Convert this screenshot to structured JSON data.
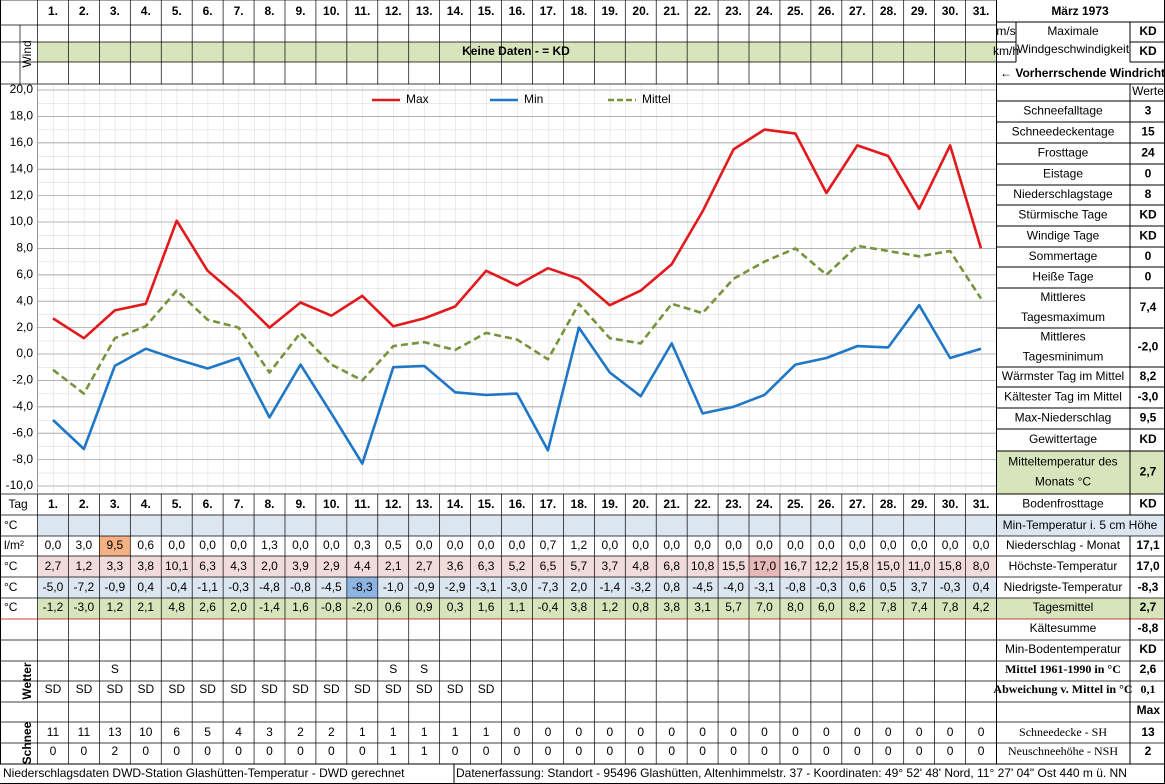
{
  "header": {
    "title": "März 1973",
    "wind_label": "Wind",
    "no_data": "Keine Daten -  = KD",
    "wind_units": [
      "m/s",
      "km/h"
    ],
    "wind_max_label": [
      "Maximale",
      "Windgeschwindigkeit"
    ],
    "wind_max_values": [
      "KD",
      "KD"
    ],
    "wind_direction": "← Vorherrschende Windrichtung"
  },
  "chart_data": {
    "type": "line",
    "categories": [
      "1.",
      "2.",
      "3.",
      "4.",
      "5.",
      "6.",
      "7.",
      "8.",
      "9.",
      "10.",
      "11.",
      "12.",
      "13.",
      "14.",
      "15.",
      "16.",
      "17.",
      "18.",
      "19.",
      "20.",
      "21.",
      "22.",
      "23.",
      "24.",
      "25.",
      "26.",
      "27.",
      "28.",
      "29.",
      "30.",
      "31."
    ],
    "series": [
      {
        "name": "Max",
        "color": "#e3191c",
        "values": [
          2.7,
          1.2,
          3.3,
          3.8,
          10.1,
          6.3,
          4.3,
          2.0,
          3.9,
          2.9,
          4.4,
          2.1,
          2.7,
          3.6,
          6.3,
          5.2,
          6.5,
          5.7,
          3.7,
          4.8,
          6.8,
          10.8,
          15.5,
          17.0,
          16.7,
          12.2,
          15.8,
          15.0,
          11.0,
          15.8,
          8.0
        ],
        "value_labels": [
          "2,7",
          "1,2",
          "3,3",
          "3,8",
          "10,1",
          "6,3",
          "4,3",
          "2,0",
          "3,9",
          "2,9",
          "4,4",
          "2,1",
          "2,7",
          "3,6",
          "6,3",
          "5,2",
          "6,5",
          "5,7",
          "3,7",
          "4,8",
          "6,8",
          "10,8",
          "15,5",
          "17,0",
          "16,7",
          "12,2",
          "15,8",
          "15,0",
          "11,0",
          "15,8",
          "8,0"
        ]
      },
      {
        "name": "Min",
        "color": "#1f77c8",
        "values": [
          -5.0,
          -7.2,
          -0.9,
          0.4,
          -0.4,
          -1.1,
          -0.3,
          -4.8,
          -0.8,
          -4.5,
          -8.3,
          -1.0,
          -0.9,
          -2.9,
          -3.1,
          -3.0,
          -7.3,
          2.0,
          -1.4,
          -3.2,
          0.8,
          -4.5,
          -4.0,
          -3.1,
          -0.8,
          -0.3,
          0.6,
          0.5,
          3.7,
          -0.3,
          0.4
        ],
        "value_labels": [
          "-5,0",
          "-7,2",
          "-0,9",
          "0,4",
          "-0,4",
          "-1,1",
          "-0,3",
          "-4,8",
          "-0,8",
          "-4,5",
          "-8,3",
          "-1,0",
          "-0,9",
          "-2,9",
          "-3,1",
          "-3,0",
          "-7,3",
          "2,0",
          "-1,4",
          "-3,2",
          "0,8",
          "-4,5",
          "-4,0",
          "-3,1",
          "-0,8",
          "-0,3",
          "0,6",
          "0,5",
          "3,7",
          "-0,3",
          "0,4"
        ]
      },
      {
        "name": "Mittel",
        "color": "#77933c",
        "dashed": true,
        "values": [
          -1.2,
          -3.0,
          1.2,
          2.1,
          4.8,
          2.6,
          2.0,
          -1.4,
          1.6,
          -0.8,
          -2.0,
          0.6,
          0.9,
          0.3,
          1.6,
          1.1,
          -0.4,
          3.8,
          1.2,
          0.8,
          3.8,
          3.1,
          5.7,
          7.0,
          8.0,
          6.0,
          8.2,
          7.8,
          7.4,
          7.8,
          4.2
        ],
        "value_labels": [
          "-1,2",
          "-3,0",
          "1,2",
          "2,1",
          "4,8",
          "2,6",
          "2,0",
          "-1,4",
          "1,6",
          "-0,8",
          "-2,0",
          "0,6",
          "0,9",
          "0,3",
          "1,6",
          "1,1",
          "-0,4",
          "3,8",
          "1,2",
          "0,8",
          "3,8",
          "3,1",
          "5,7",
          "7,0",
          "8,0",
          "6,0",
          "8,2",
          "7,8",
          "7,4",
          "7,8",
          "4,2"
        ]
      }
    ],
    "ylim": [
      -10,
      20
    ],
    "yticks": [
      {
        "value": -10,
        "label": "-10,0"
      },
      {
        "value": -8,
        "label": "-8,0"
      },
      {
        "value": -6,
        "label": "-6,0"
      },
      {
        "value": -4,
        "label": "-4,0"
      },
      {
        "value": -2,
        "label": "-2,0"
      },
      {
        "value": 0,
        "label": "0,0"
      },
      {
        "value": 2,
        "label": "2,0"
      },
      {
        "value": 4,
        "label": "4,0"
      },
      {
        "value": 6,
        "label": "6,0"
      },
      {
        "value": 8,
        "label": "8,0"
      },
      {
        "value": 10,
        "label": "10,0"
      },
      {
        "value": 12,
        "label": "12,0"
      },
      {
        "value": 14,
        "label": "14,0"
      },
      {
        "value": 16,
        "label": "16,0"
      },
      {
        "value": 18,
        "label": "18,0"
      },
      {
        "value": 20,
        "label": "20,0"
      }
    ],
    "grid": true,
    "legend": "top"
  },
  "stats": {
    "header": "Werte",
    "rows": [
      {
        "label": [
          "Schneefalltage"
        ],
        "value": "3"
      },
      {
        "label": [
          "Schneedeckentage"
        ],
        "value": "15"
      },
      {
        "label": [
          "Frosttage"
        ],
        "value": "24"
      },
      {
        "label": [
          "Eistage"
        ],
        "value": "0"
      },
      {
        "label": [
          "Niederschlagstage"
        ],
        "value": "8"
      },
      {
        "label": [
          "Stürmische Tage"
        ],
        "value": "KD"
      },
      {
        "label": [
          "Windige Tage"
        ],
        "value": "KD"
      },
      {
        "label": [
          "Sommertage"
        ],
        "value": "0"
      },
      {
        "label": [
          "Heiße Tage"
        ],
        "value": "0"
      },
      {
        "label": [
          "Mittleres",
          "Tagesmaximum"
        ],
        "value": "7,4"
      },
      {
        "label": [
          "Mittleres",
          "Tagesminimum"
        ],
        "value": "-2,0"
      },
      {
        "label": [
          "Wärmster Tag im Mittel"
        ],
        "value": "8,2"
      },
      {
        "label": [
          "Kältester Tag im Mittel"
        ],
        "value": "-3,0"
      },
      {
        "label": [
          "Max-Niederschlag"
        ],
        "value": "9,5"
      },
      {
        "label": [
          "Gewittertage"
        ],
        "value": "KD"
      },
      {
        "label": [
          "Mitteltemperatur des",
          "Monats °C"
        ],
        "value": "2,7"
      },
      {
        "label": [
          "Bodenfrosttage"
        ],
        "value": "KD"
      }
    ]
  },
  "table": {
    "tag_label": "Tag",
    "units": [
      "°C",
      "l/m²",
      "°C",
      "°C",
      "°C"
    ],
    "precipitation": [
      "0,0",
      "3,0",
      "9,5",
      "0,6",
      "0,0",
      "0,0",
      "0,0",
      "1,3",
      "0,0",
      "0,0",
      "0,3",
      "0,5",
      "0,0",
      "0,0",
      "0,0",
      "0,0",
      "0,7",
      "1,2",
      "0,0",
      "0,0",
      "0,0",
      "0,0",
      "0,0",
      "0,0",
      "0,0",
      "0,0",
      "0,0",
      "0,0",
      "0,0",
      "0,0",
      "0,0"
    ],
    "weather_label": "Wetter",
    "weather_s": [
      null,
      null,
      "S",
      null,
      null,
      null,
      null,
      null,
      null,
      null,
      null,
      "S",
      "S",
      null,
      null,
      null,
      null,
      null,
      null,
      null,
      null,
      null,
      null,
      null,
      null,
      null,
      null,
      null,
      null,
      null,
      null
    ],
    "weather_sd": [
      "SD",
      "SD",
      "SD",
      "SD",
      "SD",
      "SD",
      "SD",
      "SD",
      "SD",
      "SD",
      "SD",
      "SD",
      "SD",
      "SD",
      "SD",
      null,
      null,
      null,
      null,
      null,
      null,
      null,
      null,
      null,
      null,
      null,
      null,
      null,
      null,
      null,
      null
    ],
    "snow_label": "Schnee",
    "snow_depth": [
      11,
      11,
      13,
      10,
      6,
      5,
      4,
      3,
      2,
      2,
      1,
      1,
      1,
      1,
      1,
      0,
      0,
      0,
      0,
      0,
      0,
      0,
      0,
      0,
      0,
      0,
      0,
      0,
      0,
      0,
      0
    ],
    "new_snow": [
      0,
      0,
      2,
      0,
      0,
      0,
      0,
      0,
      0,
      0,
      0,
      1,
      1,
      0,
      0,
      0,
      0,
      0,
      0,
      0,
      0,
      0,
      0,
      0,
      0,
      0,
      0,
      0,
      0,
      0,
      0
    ]
  },
  "summary": {
    "min_temp_header": "Min-Temperatur i. 5 cm Höhe",
    "rows": [
      {
        "label": "Niederschlag - Monat",
        "value": "17,1"
      },
      {
        "label": "Höchste-Temperatur",
        "value": "17,0"
      },
      {
        "label": "Niedrigste-Temperatur",
        "value": "-8,3"
      },
      {
        "label": "Tagesmittel",
        "value": "2,7"
      },
      {
        "label": "Kältesumme",
        "value": "-8,8"
      },
      {
        "label": "Min-Bodentemperatur",
        "value": "KD"
      },
      {
        "label": "Mittel 1961-1990 in °C",
        "value": "2,6"
      },
      {
        "label": "Abweichung v. Mittel in °C",
        "value": "0,1"
      }
    ],
    "max_note": "Max",
    "snow_rows": [
      {
        "label": "Schneedecke -  SH",
        "value": "13"
      },
      {
        "label": "Neuschneehöhe - NSH",
        "value": "2"
      }
    ]
  },
  "footer": {
    "left": "Niederschlagsdaten DWD-Station Glashütten-Temperatur -  DWD gerechnet",
    "right": "Datenerfassung: Standort -  95496 Glashütten, Altenhimmelstr. 37 - Koordinaten: 49° 52' 48' Nord,  11° 27' 04\" Ost  440 m ü. NN"
  }
}
